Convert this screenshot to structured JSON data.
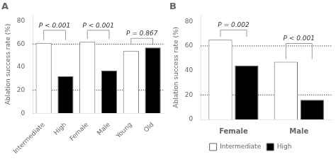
{
  "chart_data": [
    {
      "type": "bar",
      "title": "A",
      "categories": [
        "Intermediate",
        "High",
        "Female",
        "Male",
        "Young",
        "Old"
      ],
      "values": [
        61,
        32,
        62,
        37,
        54,
        57
      ],
      "colors": [
        "white",
        "black",
        "white",
        "black",
        "white",
        "black"
      ],
      "ylabel": "Ablation success rate (%)",
      "ylim": [
        0,
        85
      ],
      "yticks": [
        0,
        20,
        40,
        60,
        80
      ],
      "grid": false,
      "hlines": [
        20,
        60
      ],
      "annotations": [
        {
          "text": "P < 0.001",
          "y": 72,
          "categories": [
            "Intermediate",
            "High"
          ]
        },
        {
          "text": "P < 0.001",
          "y": 72,
          "categories": [
            "Female",
            "Male"
          ]
        },
        {
          "text": "P = 0.867",
          "y": 65,
          "categories": [
            "Young",
            "Old"
          ]
        }
      ]
    },
    {
      "type": "bar",
      "title": "B",
      "categories": [
        "Female",
        "Male"
      ],
      "series": [
        {
          "name": "Intermediate",
          "color": "white",
          "values": [
            65,
            47
          ]
        },
        {
          "name": "High",
          "color": "black",
          "values": [
            44,
            16
          ]
        }
      ],
      "ylabel": "Ablation success rate (%)",
      "ylim": [
        0,
        85
      ],
      "yticks": [
        0,
        20,
        40,
        60,
        80
      ],
      "grid": false,
      "legend": "bottom",
      "hlines": [
        20,
        60
      ],
      "annotations": [
        {
          "text": "P = 0.002",
          "y": 73,
          "category": "Female"
        },
        {
          "text": "P < 0.001",
          "y": 62,
          "category": "Male"
        }
      ]
    }
  ]
}
